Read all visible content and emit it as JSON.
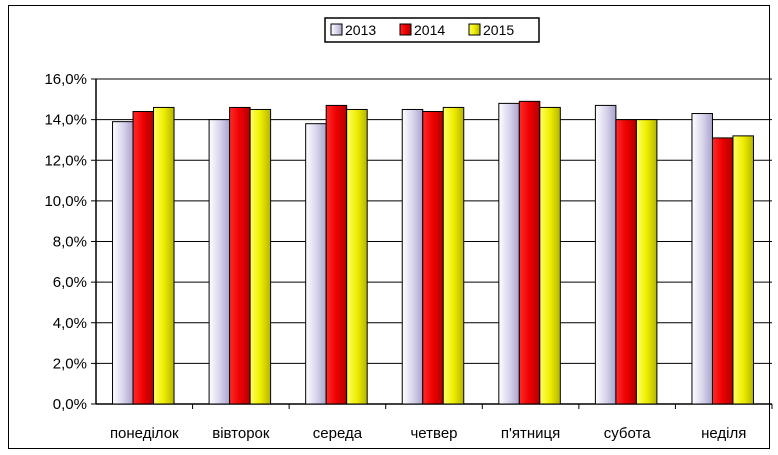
{
  "chart_data": {
    "type": "bar",
    "title": "",
    "xlabel": "",
    "ylabel": "",
    "categories": [
      "понеділок",
      "вівторок",
      "середа",
      "четвер",
      "п'ятниця",
      "субота",
      "неділя"
    ],
    "series": [
      {
        "name": "2013",
        "color": "#c8c4e0",
        "values": [
          13.9,
          14.0,
          13.8,
          14.5,
          14.8,
          14.7,
          14.3
        ]
      },
      {
        "name": "2014",
        "color": "#e60000",
        "values": [
          14.4,
          14.6,
          14.7,
          14.4,
          14.9,
          14.0,
          13.1
        ]
      },
      {
        "name": "2015",
        "color": "#e6e600",
        "values": [
          14.6,
          14.5,
          14.5,
          14.6,
          14.6,
          14.0,
          13.2
        ]
      }
    ],
    "ylim": [
      0,
      16
    ],
    "yticks": [
      "0,0%",
      "2,0%",
      "4,0%",
      "6,0%",
      "8,0%",
      "10,0%",
      "12,0%",
      "14,0%",
      "16,0%"
    ],
    "ytick_values": [
      0,
      2,
      4,
      6,
      8,
      10,
      12,
      14,
      16
    ],
    "grid": true,
    "legend_position": "top-center"
  }
}
